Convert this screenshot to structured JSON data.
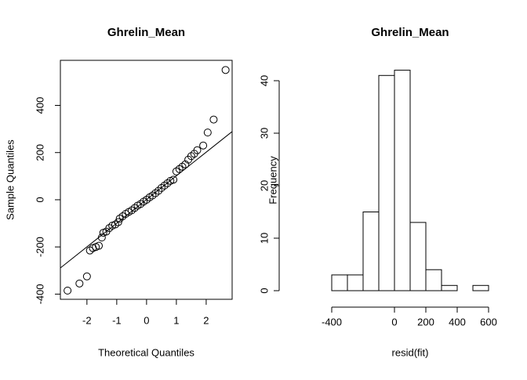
{
  "chart_data": [
    {
      "type": "qq",
      "title": "Ghrelin_Mean",
      "xlabel": "Theoretical Quantiles",
      "ylabel": "Sample Quantiles",
      "x": [
        -2.65,
        -2.25,
        -2.0,
        -1.9,
        -1.8,
        -1.7,
        -1.6,
        -1.5,
        -1.45,
        -1.35,
        -1.25,
        -1.15,
        -1.05,
        -0.95,
        -0.9,
        -0.8,
        -0.7,
        -0.6,
        -0.5,
        -0.4,
        -0.3,
        -0.2,
        -0.1,
        0,
        0.1,
        0.2,
        0.3,
        0.4,
        0.5,
        0.6,
        0.7,
        0.8,
        0.9,
        1.0,
        1.1,
        1.2,
        1.3,
        1.4,
        1.5,
        1.6,
        1.7,
        1.9,
        2.05,
        2.25,
        2.65
      ],
      "y": [
        -385,
        -355,
        -325,
        -215,
        -205,
        -200,
        -195,
        -160,
        -140,
        -135,
        -120,
        -110,
        -105,
        -95,
        -80,
        -70,
        -60,
        -52,
        -45,
        -35,
        -25,
        -18,
        -8,
        0,
        10,
        18,
        28,
        38,
        50,
        60,
        70,
        80,
        85,
        120,
        130,
        140,
        150,
        170,
        185,
        195,
        210,
        230,
        285,
        340,
        550
      ],
      "line": {
        "x": [
          -2.89,
          2.87
        ],
        "y": [
          -289,
          289
        ]
      },
      "xlim": [
        -2.89,
        2.87
      ],
      "ylim": [
        -422,
        591
      ],
      "xticks": [
        -2,
        -1,
        0,
        1,
        2
      ],
      "yticks": [
        -400,
        -200,
        0,
        200,
        400
      ]
    },
    {
      "type": "histogram",
      "title": "Ghrelin_Mean",
      "xlabel": "resid(fit)",
      "ylabel": "Frequency",
      "bins": [
        -400,
        -300,
        -200,
        -100,
        0,
        100,
        200,
        300,
        400,
        500,
        600
      ],
      "values": [
        3,
        3,
        15,
        41,
        42,
        13,
        4,
        1,
        0,
        1
      ],
      "xlim": [
        -400,
        600
      ],
      "ylim": [
        0,
        40
      ],
      "xticks": [
        -400,
        0,
        200,
        400,
        600
      ],
      "yticks": [
        0,
        10,
        20,
        30,
        40
      ]
    }
  ]
}
